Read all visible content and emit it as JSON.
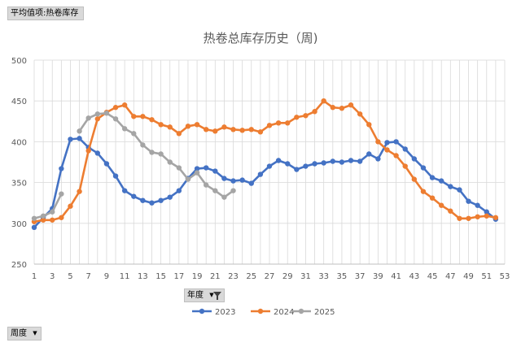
{
  "field_buttons": {
    "value_field": "平均值项:热卷库存",
    "axis_field": "周度",
    "legend_field": "年度"
  },
  "icons": {
    "dropdown": "chevron-down-icon",
    "filter": "filter-icon"
  },
  "chart_data": {
    "type": "line",
    "title": "热卷总库存历史（周)",
    "xlabel": "",
    "ylabel": "",
    "xlim": [
      1,
      53
    ],
    "ylim": [
      250,
      500
    ],
    "x_ticks": [
      1,
      3,
      5,
      7,
      9,
      11,
      13,
      15,
      17,
      19,
      21,
      23,
      25,
      27,
      29,
      31,
      33,
      35,
      37,
      39,
      41,
      43,
      45,
      47,
      49,
      51,
      53
    ],
    "y_ticks": [
      250,
      300,
      350,
      400,
      450,
      500
    ],
    "grid": true,
    "legend_position": "bottom",
    "series": [
      {
        "name": "2023",
        "color": "#4472c4",
        "x": [
          1,
          2,
          3,
          4,
          5,
          6,
          7,
          8,
          9,
          10,
          11,
          12,
          13,
          14,
          15,
          16,
          17,
          18,
          19,
          20,
          21,
          22,
          23,
          24,
          25,
          26,
          27,
          28,
          29,
          30,
          31,
          32,
          33,
          34,
          35,
          36,
          37,
          38,
          39,
          40,
          41,
          42,
          43,
          44,
          45,
          46,
          47,
          48,
          49,
          50,
          51,
          52
        ],
        "values": [
          295,
          307,
          318,
          367,
          403,
          404,
          393,
          386,
          373,
          358,
          340,
          333,
          328,
          325,
          328,
          332,
          340,
          355,
          367,
          368,
          364,
          355,
          352,
          353,
          349,
          360,
          370,
          377,
          373,
          366,
          370,
          373,
          374,
          376,
          375,
          377,
          376,
          385,
          379,
          399,
          400,
          391,
          379,
          368,
          356,
          352,
          345,
          341,
          327,
          322,
          314,
          305
        ]
      },
      {
        "name": "2024",
        "color": "#ed7d31",
        "x": [
          1,
          2,
          3,
          4,
          5,
          6,
          7,
          8,
          9,
          10,
          11,
          12,
          13,
          14,
          15,
          16,
          17,
          18,
          19,
          20,
          21,
          22,
          23,
          24,
          25,
          26,
          27,
          28,
          29,
          30,
          31,
          32,
          33,
          34,
          35,
          36,
          37,
          38,
          39,
          40,
          41,
          42,
          43,
          44,
          45,
          46,
          47,
          48,
          49,
          50,
          51,
          52
        ],
        "values": [
          302,
          304,
          304,
          307,
          321,
          339,
          389,
          428,
          436,
          442,
          445,
          431,
          431,
          427,
          421,
          418,
          410,
          419,
          421,
          415,
          413,
          418,
          415,
          414,
          415,
          412,
          420,
          423,
          423,
          430,
          432,
          437,
          450,
          442,
          441,
          445,
          434,
          421,
          400,
          390,
          383,
          370,
          354,
          339,
          331,
          322,
          315,
          306,
          306,
          308,
          309,
          307
        ]
      },
      {
        "name": "2025",
        "color": "#a5a5a5",
        "x": [
          1,
          2,
          3,
          4,
          5,
          6,
          7,
          8,
          9,
          10,
          11,
          12,
          13,
          14,
          15,
          16,
          17,
          18,
          19,
          20,
          21,
          22,
          23
        ],
        "values": [
          306,
          309,
          314,
          336,
          null,
          413,
          429,
          434,
          435,
          428,
          416,
          410,
          396,
          387,
          385,
          375,
          368,
          354,
          362,
          347,
          340,
          332,
          340
        ]
      }
    ]
  }
}
